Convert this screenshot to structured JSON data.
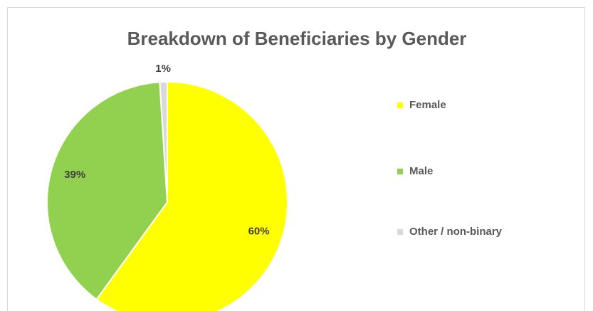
{
  "chart_data": {
    "type": "pie",
    "title": "Breakdown of Beneficiaries by Gender",
    "categories": [
      "Female",
      "Male",
      "Other / non-binary"
    ],
    "values": [
      60,
      39,
      1
    ],
    "value_labels": [
      "60%",
      "39%",
      "1%"
    ],
    "colors": [
      "#ffff00",
      "#92d050",
      "#d9d9d9"
    ],
    "legend": "right"
  }
}
